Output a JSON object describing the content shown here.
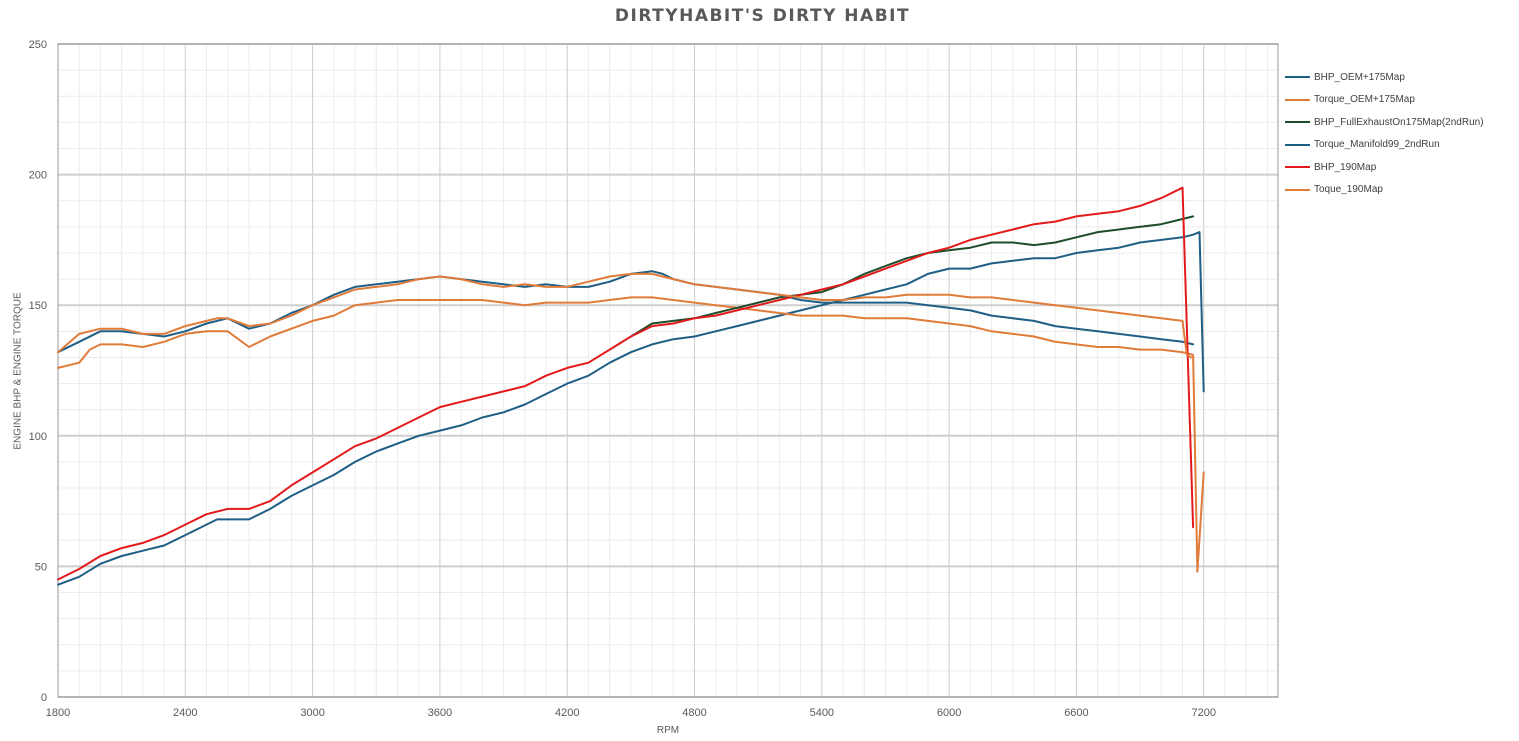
{
  "chart_data": {
    "type": "line",
    "title": "DIRTYHABIT'S DIRTY HABIT",
    "xlabel": "RPM",
    "ylabel": "ENGINE BHP & ENGINE TORQUE",
    "xlim": [
      1800,
      7550
    ],
    "ylim": [
      0,
      250
    ],
    "x_ticks": [
      1800,
      2400,
      3000,
      3600,
      4200,
      4800,
      5400,
      6000,
      6600,
      7200
    ],
    "y_ticks": [
      0,
      50,
      100,
      150,
      200,
      250
    ],
    "x_tick_labels": [
      "1800",
      "2400",
      "3000",
      "3600",
      "4200",
      "4800",
      "5400",
      "6000",
      "6600",
      "7200"
    ],
    "y_tick_labels": [
      "0",
      "50",
      "100",
      "150",
      "200",
      "250"
    ],
    "grid": true,
    "legend_position": "right",
    "series": [
      {
        "name": "BHP_OEM+175Map",
        "color": "#1f5f85",
        "x": [
          1800,
          1900,
          2000,
          2100,
          2200,
          2300,
          2400,
          2500,
          2550,
          2600,
          2700,
          2800,
          2900,
          3000,
          3100,
          3200,
          3300,
          3400,
          3500,
          3600,
          3700,
          3800,
          3900,
          4000,
          4100,
          4200,
          4300,
          4400,
          4500,
          4600,
          4700,
          4800,
          4900,
          5000,
          5100,
          5200,
          5300,
          5400,
          5500,
          5600,
          5700,
          5800,
          5900,
          6000,
          6100,
          6200,
          6300,
          6400,
          6500,
          6600,
          6700,
          6800,
          6900,
          7000,
          7100,
          7150,
          7180,
          7200
        ],
        "y": [
          43,
          46,
          51,
          54,
          56,
          58,
          62,
          66,
          68,
          68,
          68,
          72,
          77,
          81,
          85,
          90,
          94,
          97,
          100,
          102,
          104,
          107,
          109,
          112,
          116,
          120,
          123,
          128,
          132,
          135,
          137,
          138,
          140,
          142,
          144,
          146,
          148,
          150,
          152,
          154,
          156,
          158,
          162,
          164,
          164,
          166,
          167,
          168,
          168,
          170,
          171,
          172,
          174,
          175,
          176,
          177,
          178,
          117
        ]
      },
      {
        "name": "Torque_OEM+175Map",
        "color": "#e07b39",
        "x": [
          1800,
          1900,
          1950,
          2000,
          2100,
          2200,
          2300,
          2400,
          2500,
          2600,
          2700,
          2800,
          2900,
          3000,
          3100,
          3200,
          3300,
          3400,
          3500,
          3600,
          3700,
          3800,
          3900,
          4000,
          4100,
          4200,
          4300,
          4400,
          4500,
          4600,
          4700,
          4800,
          4900,
          5000,
          5100,
          5200,
          5300,
          5400,
          5500,
          5600,
          5700,
          5800,
          5900,
          6000,
          6100,
          6200,
          6300,
          6400,
          6500,
          6600,
          6700,
          6800,
          6900,
          7000,
          7100,
          7150,
          7170,
          7200
        ],
        "y": [
          126,
          128,
          133,
          135,
          135,
          134,
          136,
          139,
          140,
          140,
          134,
          138,
          141,
          144,
          146,
          150,
          151,
          152,
          152,
          152,
          152,
          152,
          151,
          150,
          151,
          151,
          151,
          152,
          153,
          153,
          152,
          151,
          150,
          149,
          148,
          147,
          146,
          146,
          146,
          145,
          145,
          145,
          144,
          143,
          142,
          140,
          139,
          138,
          136,
          135,
          134,
          134,
          133,
          133,
          132,
          131,
          48,
          86
        ]
      },
      {
        "name": "BHP_FullExhaustOn175Map(2ndRun)",
        "color": "#1e4d2b",
        "x": [
          4500,
          4600,
          4700,
          4800,
          4900,
          5000,
          5100,
          5200,
          5300,
          5400,
          5500,
          5600,
          5700,
          5800,
          5900,
          6000,
          6100,
          6200,
          6300,
          6400,
          6500,
          6600,
          6700,
          6800,
          6900,
          7000,
          7100,
          7150
        ],
        "y": [
          138,
          143,
          144,
          145,
          147,
          149,
          151,
          153,
          154,
          155,
          158,
          162,
          165,
          168,
          170,
          171,
          172,
          174,
          174,
          173,
          174,
          176,
          178,
          179,
          180,
          181,
          183,
          184
        ]
      },
      {
        "name": "Torque_Manifold99_2ndRun",
        "color": "#1f5f85",
        "x": [
          1800,
          1900,
          2000,
          2100,
          2200,
          2300,
          2400,
          2500,
          2600,
          2700,
          2800,
          2900,
          3000,
          3100,
          3200,
          3300,
          3400,
          3500,
          3600,
          3700,
          3800,
          3900,
          4000,
          4100,
          4200,
          4300,
          4400,
          4500,
          4600,
          4650,
          4700,
          4800,
          4900,
          5000,
          5100,
          5200,
          5300,
          5400,
          5500,
          5600,
          5700,
          5800,
          5900,
          6000,
          6100,
          6200,
          6300,
          6400,
          6500,
          6600,
          6700,
          6800,
          6900,
          7000,
          7100,
          7150
        ],
        "y": [
          132,
          136,
          140,
          140,
          139,
          138,
          140,
          143,
          145,
          141,
          143,
          147,
          150,
          154,
          157,
          158,
          159,
          160,
          161,
          160,
          159,
          158,
          157,
          158,
          157,
          157,
          159,
          162,
          163,
          162,
          160,
          158,
          157,
          156,
          155,
          154,
          152,
          151,
          151,
          151,
          151,
          151,
          150,
          149,
          148,
          146,
          145,
          144,
          142,
          141,
          140,
          139,
          138,
          137,
          136,
          135
        ]
      },
      {
        "name": "BHP_190Map",
        "color": "#e31a1c",
        "x": [
          1800,
          1900,
          2000,
          2100,
          2200,
          2300,
          2400,
          2500,
          2600,
          2700,
          2800,
          2900,
          3000,
          3100,
          3200,
          3300,
          3400,
          3500,
          3600,
          3700,
          3800,
          3900,
          4000,
          4100,
          4200,
          4300,
          4400,
          4500,
          4600,
          4700,
          4800,
          4900,
          5000,
          5100,
          5200,
          5300,
          5400,
          5500,
          5600,
          5700,
          5800,
          5900,
          6000,
          6100,
          6200,
          6300,
          6400,
          6500,
          6600,
          6700,
          6800,
          6900,
          7000,
          7100,
          7150
        ],
        "y": [
          45,
          49,
          54,
          57,
          59,
          62,
          66,
          70,
          72,
          72,
          75,
          81,
          86,
          91,
          96,
          99,
          103,
          107,
          111,
          113,
          115,
          117,
          119,
          123,
          126,
          128,
          133,
          138,
          142,
          143,
          145,
          146,
          148,
          150,
          152,
          154,
          156,
          158,
          161,
          164,
          167,
          170,
          172,
          175,
          177,
          179,
          181,
          182,
          184,
          185,
          186,
          188,
          191,
          195,
          65
        ]
      },
      {
        "name": "Toque_190Map",
        "color": "#e07b39",
        "x": [
          1800,
          1900,
          2000,
          2100,
          2200,
          2300,
          2400,
          2500,
          2550,
          2600,
          2700,
          2800,
          2900,
          3000,
          3100,
          3200,
          3300,
          3400,
          3500,
          3600,
          3700,
          3800,
          3900,
          4000,
          4100,
          4200,
          4300,
          4400,
          4500,
          4600,
          4700,
          4800,
          4900,
          5000,
          5100,
          5200,
          5300,
          5400,
          5500,
          5600,
          5700,
          5800,
          5900,
          6000,
          6100,
          6200,
          6300,
          6400,
          6500,
          6600,
          6700,
          6800,
          6900,
          7000,
          7100,
          7120,
          7140
        ],
        "y": [
          132,
          139,
          141,
          141,
          139,
          139,
          142,
          144,
          145,
          145,
          142,
          143,
          146,
          150,
          153,
          156,
          157,
          158,
          160,
          161,
          160,
          158,
          157,
          158,
          157,
          157,
          159,
          161,
          162,
          162,
          160,
          158,
          157,
          156,
          155,
          154,
          153,
          152,
          152,
          153,
          153,
          154,
          154,
          154,
          153,
          153,
          152,
          151,
          150,
          149,
          148,
          147,
          146,
          145,
          144,
          131,
          130
        ]
      }
    ]
  }
}
